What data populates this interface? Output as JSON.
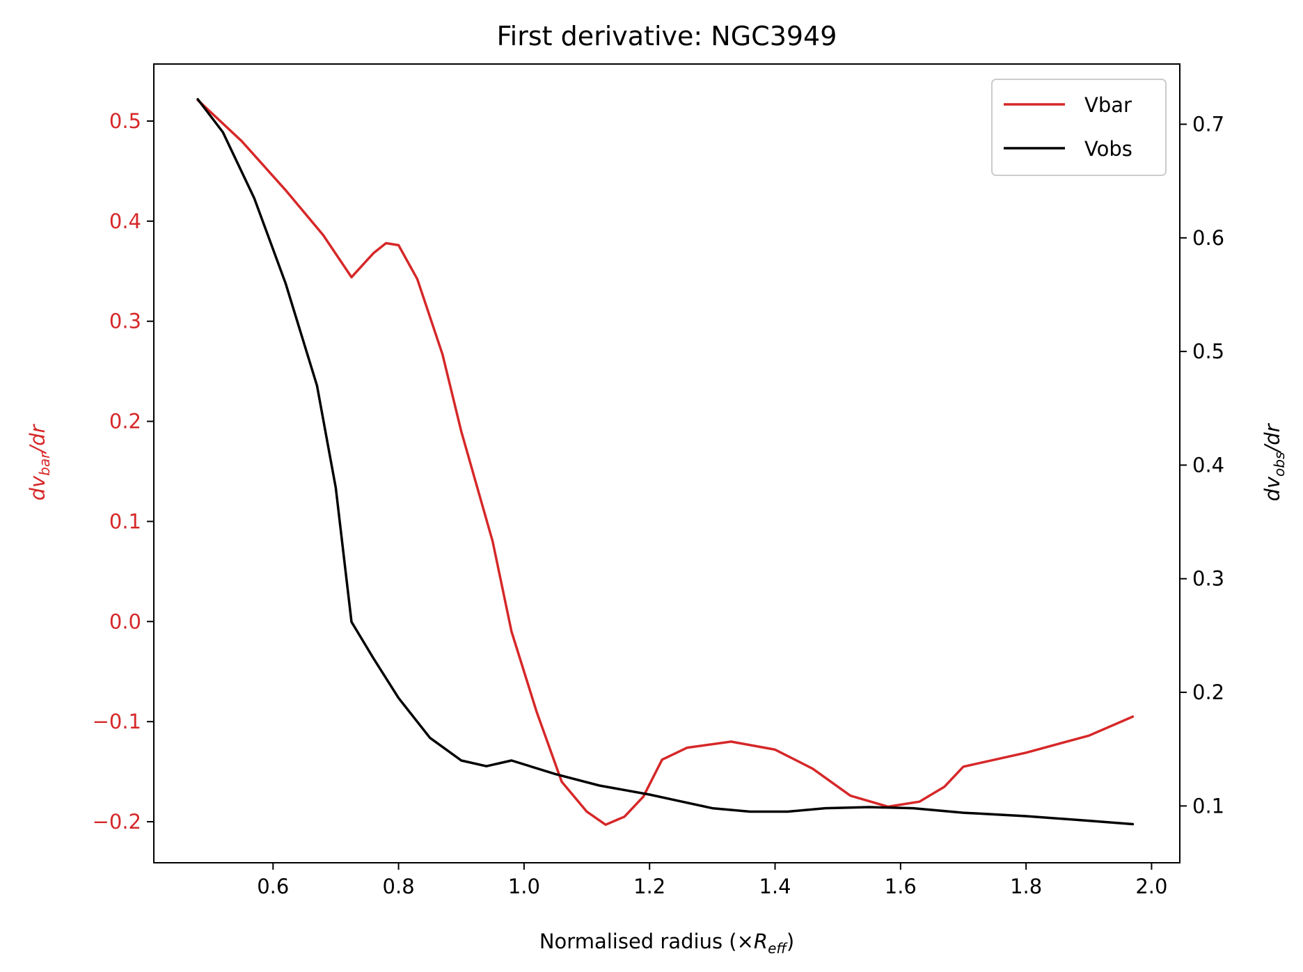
{
  "chart_data": {
    "type": "line",
    "title": "First derivative: NGC3949",
    "xlabel": {
      "text": "Normalised radius (×",
      "var": "R",
      "sub": "eff",
      "close": ")"
    },
    "ylabel_left": {
      "prefix": "dv",
      "sub": "bar",
      "suffix": "/dr"
    },
    "ylabel_right": {
      "prefix": "dv",
      "sub": "obs",
      "suffix": "/dr"
    },
    "xlim": [
      0.41,
      2.045
    ],
    "ylim_left": [
      -0.241,
      0.557
    ],
    "ylim_right": [
      0.05,
      0.753
    ],
    "xticks": [
      0.6,
      0.8,
      1.0,
      1.2,
      1.4,
      1.6,
      1.8,
      2.0
    ],
    "xtick_labels": [
      "0.6",
      "0.8",
      "1.0",
      "1.2",
      "1.4",
      "1.6",
      "1.8",
      "2.0"
    ],
    "yticks_left": [
      -0.2,
      -0.1,
      0.0,
      0.1,
      0.2,
      0.3,
      0.4,
      0.5
    ],
    "ytick_labels_left": [
      "−0.2",
      "−0.1",
      "0.0",
      "0.1",
      "0.2",
      "0.3",
      "0.4",
      "0.5"
    ],
    "yticks_right": [
      0.1,
      0.2,
      0.3,
      0.4,
      0.5,
      0.6,
      0.7
    ],
    "ytick_labels_right": [
      "0.1",
      "0.2",
      "0.3",
      "0.4",
      "0.5",
      "0.6",
      "0.7"
    ],
    "legend_position": "upper right",
    "grid": false,
    "series": [
      {
        "name": "Vbar",
        "axis": "left",
        "color": "#d62728",
        "points": [
          [
            0.48,
            0.521
          ],
          [
            0.55,
            0.48
          ],
          [
            0.62,
            0.431
          ],
          [
            0.68,
            0.386
          ],
          [
            0.725,
            0.344
          ],
          [
            0.76,
            0.368
          ],
          [
            0.78,
            0.378
          ],
          [
            0.8,
            0.376
          ],
          [
            0.83,
            0.342
          ],
          [
            0.87,
            0.267
          ],
          [
            0.9,
            0.19
          ],
          [
            0.95,
            0.08
          ],
          [
            0.98,
            -0.01
          ],
          [
            1.02,
            -0.09
          ],
          [
            1.06,
            -0.16
          ],
          [
            1.1,
            -0.19
          ],
          [
            1.13,
            -0.203
          ],
          [
            1.16,
            -0.195
          ],
          [
            1.19,
            -0.175
          ],
          [
            1.22,
            -0.138
          ],
          [
            1.26,
            -0.126
          ],
          [
            1.33,
            -0.12
          ],
          [
            1.4,
            -0.128
          ],
          [
            1.46,
            -0.147
          ],
          [
            1.52,
            -0.174
          ],
          [
            1.58,
            -0.185
          ],
          [
            1.63,
            -0.18
          ],
          [
            1.67,
            -0.165
          ],
          [
            1.7,
            -0.145
          ],
          [
            1.8,
            -0.131
          ],
          [
            1.9,
            -0.114
          ],
          [
            1.97,
            -0.095
          ]
        ]
      },
      {
        "name": "Vobs",
        "axis": "right",
        "color": "#000000",
        "points": [
          [
            0.48,
            0.722
          ],
          [
            0.52,
            0.693
          ],
          [
            0.57,
            0.635
          ],
          [
            0.62,
            0.56
          ],
          [
            0.67,
            0.47
          ],
          [
            0.7,
            0.38
          ],
          [
            0.725,
            0.262
          ],
          [
            0.76,
            0.23
          ],
          [
            0.8,
            0.195
          ],
          [
            0.85,
            0.16
          ],
          [
            0.9,
            0.14
          ],
          [
            0.94,
            0.135
          ],
          [
            0.98,
            0.14
          ],
          [
            1.05,
            0.128
          ],
          [
            1.12,
            0.118
          ],
          [
            1.2,
            0.11
          ],
          [
            1.25,
            0.104
          ],
          [
            1.3,
            0.098
          ],
          [
            1.36,
            0.095
          ],
          [
            1.42,
            0.095
          ],
          [
            1.48,
            0.098
          ],
          [
            1.55,
            0.099
          ],
          [
            1.62,
            0.098
          ],
          [
            1.7,
            0.094
          ],
          [
            1.8,
            0.091
          ],
          [
            1.9,
            0.087
          ],
          [
            1.97,
            0.084
          ]
        ]
      }
    ],
    "colors": {
      "left_axis": "#d62728",
      "right_axis": "#000000"
    }
  }
}
